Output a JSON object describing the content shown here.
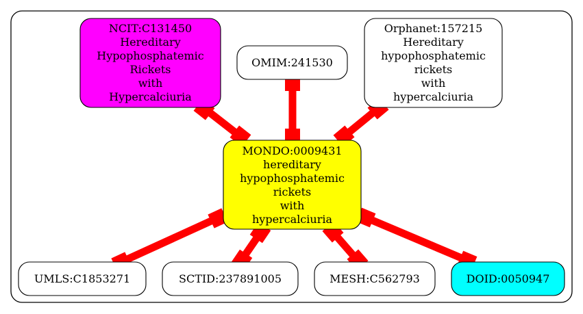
{
  "colors": {
    "edge": "#ff0000",
    "border": "#000000",
    "default_fill": "#ffffff",
    "center_fill": "#ffff00",
    "ncit_fill": "#ff00ff",
    "doid_fill": "#00ffff"
  },
  "nodes": {
    "center": {
      "lines": [
        "MONDO:0009431",
        "hereditary",
        "hypophosphatemic",
        "rickets",
        "with",
        "hypercalciuria"
      ]
    },
    "ncit": {
      "lines": [
        "NCIT:C131450",
        "Hereditary",
        "Hypophosphatemic",
        "Rickets",
        "with",
        "Hypercalciuria"
      ]
    },
    "omim": {
      "lines": [
        "OMIM:241530"
      ]
    },
    "orphanet": {
      "lines": [
        "Orphanet:157215",
        "Hereditary",
        "hypophosphatemic",
        "rickets",
        "with",
        "hypercalciuria"
      ]
    },
    "umls": {
      "lines": [
        "UMLS:C1853271"
      ]
    },
    "sctid": {
      "lines": [
        "SCTID:237891005"
      ]
    },
    "mesh": {
      "lines": [
        "MESH:C562793"
      ]
    },
    "doid": {
      "lines": [
        "DOID:0050947"
      ]
    }
  }
}
